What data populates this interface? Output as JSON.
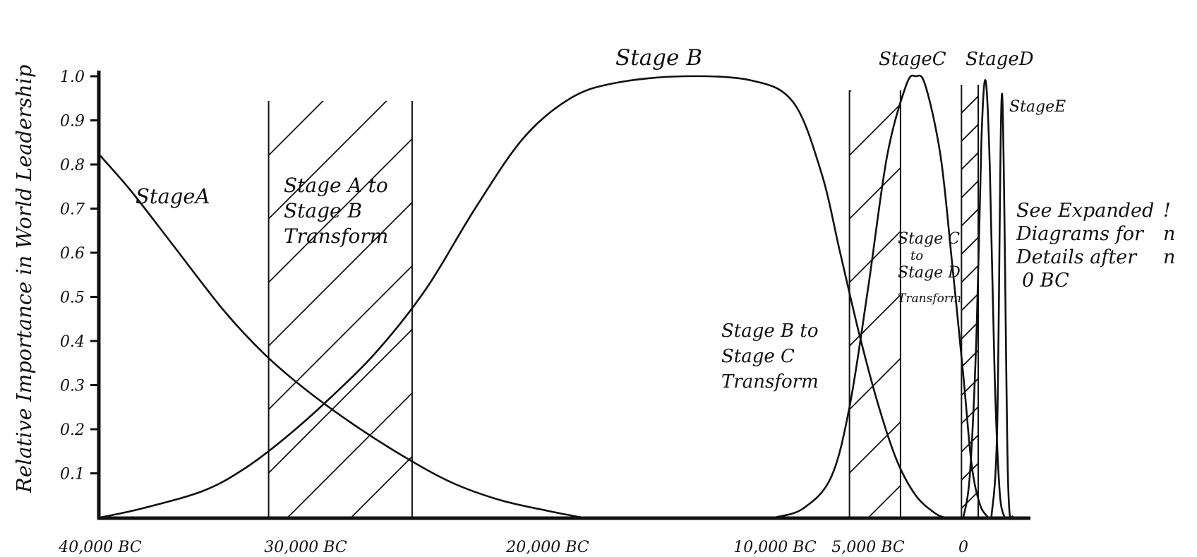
{
  "chart_data": {
    "type": "line",
    "title": "",
    "xlabel": "",
    "ylabel": "Relative Importance in World Leadership",
    "ylim": [
      0,
      1.0
    ],
    "y_ticks": [
      "0.1",
      "0.2",
      "0.3",
      "0.4",
      "0.5",
      "0.6",
      "0.7",
      "0.8",
      "0.9",
      "1.0"
    ],
    "x_ticks": [
      {
        "label": "40,000 BC",
        "x": -40000
      },
      {
        "label": "30,000 BC",
        "x": -30000
      },
      {
        "label": "20,000 BC",
        "x": -20000
      },
      {
        "label": "10,000 BC",
        "x": -10000
      },
      {
        "label": "5,000 BC",
        "x": -5000
      },
      {
        "label": "0",
        "x": 0
      }
    ],
    "series": [
      {
        "name": "Stage A",
        "points": [
          [
            -40000,
            0.82
          ],
          [
            -38500,
            0.74
          ],
          [
            -36500,
            0.62
          ],
          [
            -34000,
            0.47
          ],
          [
            -32000,
            0.37
          ],
          [
            -30000,
            0.29
          ],
          [
            -28000,
            0.21
          ],
          [
            -26000,
            0.14
          ],
          [
            -24000,
            0.08
          ],
          [
            -22000,
            0.04
          ],
          [
            -20000,
            0.015
          ],
          [
            -18500,
            0.0
          ]
        ]
      },
      {
        "name": "Stage B",
        "points": [
          [
            -40000,
            0.0
          ],
          [
            -38000,
            0.02
          ],
          [
            -35000,
            0.06
          ],
          [
            -33000,
            0.11
          ],
          [
            -31000,
            0.18
          ],
          [
            -29000,
            0.27
          ],
          [
            -27000,
            0.38
          ],
          [
            -25000,
            0.52
          ],
          [
            -23000,
            0.7
          ],
          [
            -21000,
            0.86
          ],
          [
            -19000,
            0.95
          ],
          [
            -17000,
            0.985
          ],
          [
            -14000,
            1.0
          ],
          [
            -11000,
            0.99
          ],
          [
            -9000,
            0.94
          ],
          [
            -7500,
            0.78
          ],
          [
            -6500,
            0.6
          ],
          [
            -5500,
            0.42
          ],
          [
            -4500,
            0.26
          ],
          [
            -3500,
            0.13
          ],
          [
            -2500,
            0.05
          ],
          [
            -1500,
            0.01
          ],
          [
            -1000,
            0.0
          ]
        ]
      },
      {
        "name": "Stage C",
        "points": [
          [
            -10000,
            0.0
          ],
          [
            -8500,
            0.02
          ],
          [
            -7000,
            0.09
          ],
          [
            -6000,
            0.25
          ],
          [
            -5000,
            0.52
          ],
          [
            -4000,
            0.82
          ],
          [
            -3000,
            0.98
          ],
          [
            -2500,
            1.0
          ],
          [
            -2000,
            0.98
          ],
          [
            -1200,
            0.82
          ],
          [
            -600,
            0.58
          ],
          [
            0,
            0.32
          ],
          [
            500,
            0.12
          ],
          [
            1000,
            0.03
          ],
          [
            1500,
            0.0
          ]
        ]
      },
      {
        "name": "Stage D",
        "points": [
          [
            0,
            0.0
          ],
          [
            400,
            0.1
          ],
          [
            800,
            0.42
          ],
          [
            1100,
            0.86
          ],
          [
            1350,
            0.99
          ],
          [
            1600,
            0.8
          ],
          [
            1900,
            0.32
          ],
          [
            2200,
            0.06
          ],
          [
            2500,
            0.0
          ]
        ]
      },
      {
        "name": "Stage E",
        "points": [
          [
            1700,
            0.0
          ],
          [
            2050,
            0.2
          ],
          [
            2350,
            0.96
          ],
          [
            2700,
            0.1
          ],
          [
            3000,
            0.0
          ]
        ]
      }
    ],
    "transforms": [
      {
        "from": -31800,
        "to": -25600
      },
      {
        "from": -6000,
        "to": -3300
      },
      {
        "from": -100,
        "to": 900
      }
    ],
    "labels": {
      "stage_a": "StageA",
      "stage_b": "Stage B",
      "stage_c": "StageC",
      "stage_d": "StageD",
      "stage_e": "StageE",
      "ab_transform": [
        "Stage A to",
        "Stage B",
        "Transform"
      ],
      "bc_transform": [
        "Stage B to",
        "Stage C",
        "Transform"
      ],
      "cd_transform": [
        "Stage C",
        "to",
        "Stage D",
        "Transform"
      ]
    },
    "note": [
      "See Expanded",
      "Diagrams for",
      "Details after",
      "0 BC"
    ],
    "note_edge_marks": [
      "!",
      "n",
      "n"
    ]
  }
}
